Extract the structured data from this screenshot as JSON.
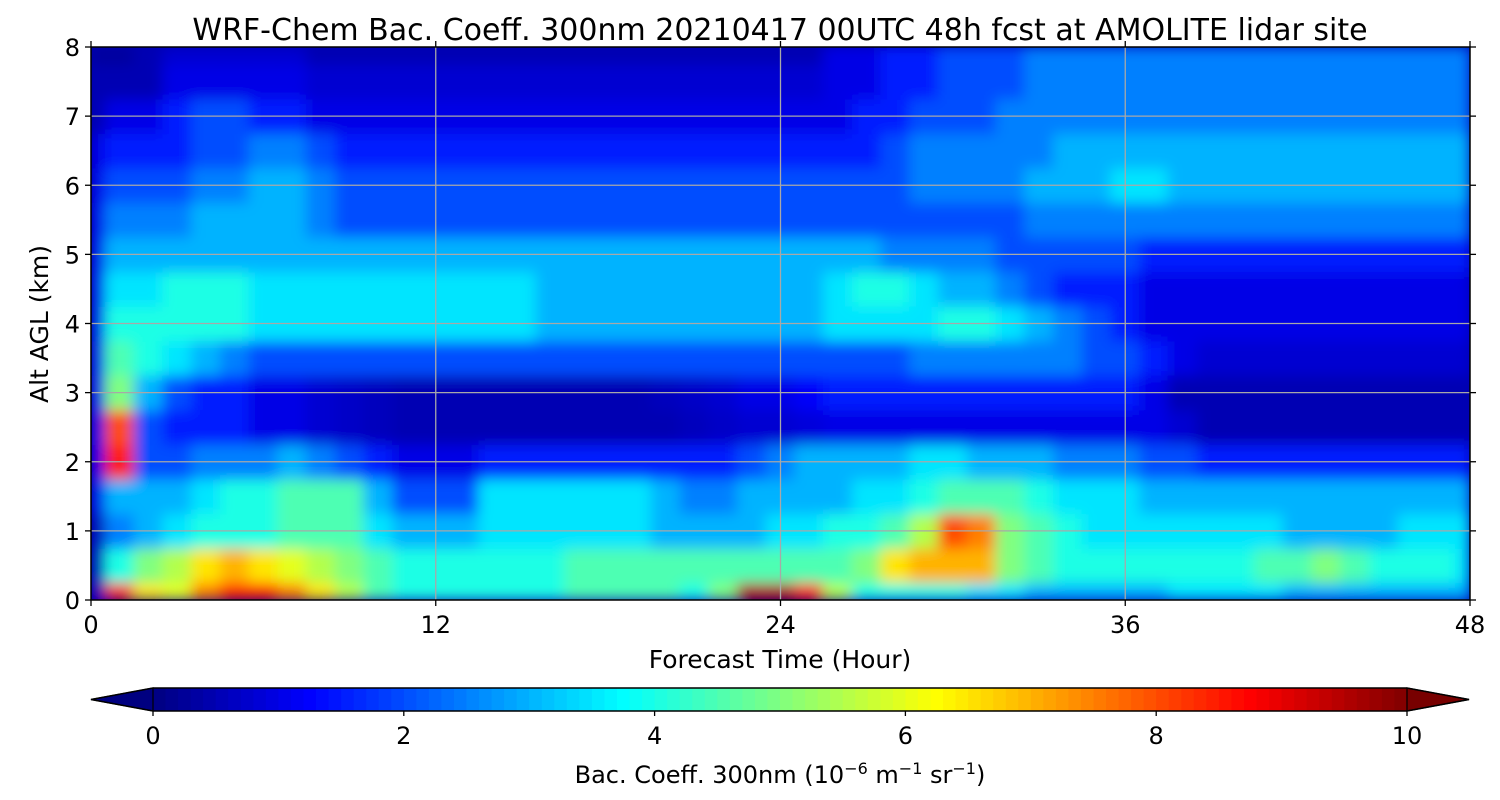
{
  "chart_data": {
    "type": "heatmap",
    "title": "WRF-Chem Bac. Coeff. 300nm  20210417 00UTC 48h fcst at AMOLITE lidar site",
    "xlabel": "Forecast Time (Hour)",
    "ylabel": "Alt AGL (km)",
    "xlim": [
      0,
      48
    ],
    "ylim": [
      0,
      8
    ],
    "xticks": [
      0,
      12,
      24,
      36,
      48
    ],
    "yticks": [
      0,
      1,
      2,
      3,
      4,
      5,
      6,
      7,
      8
    ],
    "grid": true,
    "colormap": "jet",
    "colorbar": {
      "label_prefix": "Bac. Coeff. 300nm  (10",
      "label_exp1": "−6",
      "label_mid": " m",
      "label_exp2": "−1",
      "label_mid2": " sr",
      "label_exp3": "−1",
      "label_suffix": ")",
      "min": 0,
      "max": 10,
      "ticks": [
        0,
        2,
        4,
        6,
        8,
        10
      ],
      "extend": "both"
    },
    "x": [
      0,
      1,
      2,
      3,
      4,
      5,
      6,
      7,
      8,
      9,
      10,
      11,
      12,
      13,
      14,
      15,
      16,
      17,
      18,
      19,
      20,
      21,
      22,
      23,
      24,
      25,
      26,
      27,
      28,
      29,
      30,
      31,
      32,
      33,
      34,
      35,
      36,
      37,
      38,
      39,
      40,
      41,
      42,
      43,
      44,
      45,
      46,
      47,
      48
    ],
    "y": [
      0,
      0.5,
      1,
      1.5,
      2,
      2.5,
      3,
      3.5,
      4,
      4.5,
      5,
      5.5,
      6,
      6.5,
      7,
      7.5,
      8
    ],
    "z": [
      [
        0.5,
        8.5,
        6.5,
        6.0,
        7.5,
        8.5,
        8.5,
        7.5,
        6.5,
        5.5,
        4.5,
        4.0,
        4.0,
        4.0,
        4.0,
        4.0,
        4.0,
        4.5,
        4.5,
        4.5,
        4.5,
        4.0,
        5.0,
        9.5,
        9.5,
        8.5,
        5.5,
        4.0,
        4.0,
        4.0,
        4.0,
        3.5,
        3.5,
        3.0,
        3.0,
        3.0,
        3.0,
        3.0,
        3.5,
        3.5,
        3.5,
        3.5,
        3.0,
        3.0,
        3.0,
        3.0,
        3.0,
        3.0,
        3.0
      ],
      [
        0.5,
        4.0,
        5.0,
        5.5,
        6.5,
        7.0,
        6.5,
        6.0,
        5.5,
        5.0,
        4.5,
        4.0,
        4.0,
        4.0,
        4.0,
        4.0,
        4.0,
        4.5,
        4.5,
        4.5,
        4.5,
        4.5,
        4.5,
        4.5,
        4.5,
        4.5,
        4.5,
        5.0,
        6.5,
        7.0,
        7.0,
        7.0,
        5.0,
        4.5,
        4.0,
        4.0,
        4.0,
        4.0,
        4.0,
        4.0,
        4.0,
        4.5,
        4.5,
        5.0,
        4.5,
        4.0,
        4.0,
        4.0,
        3.5
      ],
      [
        0.5,
        2.5,
        3.0,
        3.5,
        4.0,
        4.0,
        4.0,
        4.5,
        4.5,
        4.5,
        3.5,
        3.0,
        3.0,
        3.0,
        3.5,
        3.5,
        3.5,
        3.5,
        3.5,
        3.5,
        3.0,
        3.0,
        3.0,
        3.0,
        3.5,
        3.5,
        4.0,
        4.0,
        4.5,
        5.5,
        8.0,
        7.5,
        5.0,
        4.5,
        4.0,
        3.5,
        3.5,
        3.5,
        3.5,
        3.5,
        3.5,
        3.5,
        3.0,
        3.0,
        3.0,
        3.0,
        3.5,
        3.5,
        3.5
      ],
      [
        1.0,
        3.0,
        3.0,
        3.0,
        3.5,
        4.0,
        4.0,
        4.5,
        4.5,
        4.5,
        3.0,
        2.0,
        2.0,
        2.0,
        3.5,
        3.5,
        3.5,
        3.5,
        3.5,
        3.5,
        3.0,
        2.5,
        2.5,
        3.0,
        3.0,
        3.0,
        3.0,
        3.5,
        3.5,
        4.0,
        4.5,
        4.5,
        4.5,
        4.0,
        3.5,
        3.5,
        3.5,
        3.0,
        3.0,
        3.0,
        3.0,
        3.0,
        3.0,
        3.0,
        3.0,
        3.0,
        3.0,
        3.0,
        3.0
      ],
      [
        1.0,
        8.5,
        2.0,
        2.0,
        2.5,
        2.5,
        2.5,
        3.0,
        2.5,
        2.0,
        1.5,
        1.0,
        1.0,
        1.0,
        1.5,
        1.5,
        1.5,
        1.5,
        1.5,
        1.5,
        1.5,
        1.5,
        1.5,
        2.0,
        2.5,
        3.0,
        3.0,
        3.0,
        3.0,
        3.5,
        3.5,
        3.0,
        3.0,
        3.0,
        2.5,
        2.5,
        2.5,
        2.0,
        2.0,
        1.5,
        1.5,
        1.5,
        1.5,
        1.5,
        1.5,
        1.5,
        1.5,
        1.5,
        1.5
      ],
      [
        1.0,
        8.0,
        2.0,
        1.5,
        1.5,
        1.5,
        1.0,
        1.0,
        0.8,
        0.7,
        0.6,
        0.5,
        0.5,
        0.5,
        0.5,
        0.5,
        0.5,
        0.5,
        0.5,
        0.5,
        0.5,
        0.6,
        0.7,
        0.8,
        0.8,
        0.9,
        1.0,
        1.0,
        1.0,
        1.0,
        1.0,
        1.0,
        1.0,
        1.0,
        1.0,
        1.0,
        1.0,
        1.0,
        0.8,
        0.5,
        0.5,
        0.5,
        0.5,
        0.5,
        0.5,
        0.5,
        0.5,
        0.5,
        0.5
      ],
      [
        1.0,
        5.0,
        3.0,
        2.0,
        1.5,
        1.5,
        1.0,
        1.0,
        0.8,
        0.7,
        0.6,
        0.5,
        0.5,
        0.5,
        0.5,
        0.5,
        0.5,
        0.5,
        0.5,
        0.5,
        0.6,
        0.7,
        0.8,
        1.0,
        1.0,
        1.2,
        1.5,
        1.5,
        1.5,
        1.5,
        1.5,
        1.5,
        1.5,
        1.5,
        1.5,
        1.5,
        1.5,
        1.0,
        0.5,
        0.5,
        0.5,
        0.5,
        0.5,
        0.5,
        0.5,
        0.5,
        0.5,
        0.5,
        0.5
      ],
      [
        1.0,
        4.5,
        4.0,
        3.5,
        3.0,
        2.5,
        2.0,
        2.0,
        2.0,
        2.0,
        2.0,
        2.0,
        2.0,
        2.0,
        2.0,
        2.0,
        2.0,
        2.0,
        2.0,
        2.0,
        2.0,
        2.0,
        2.0,
        2.0,
        2.0,
        2.0,
        2.0,
        2.0,
        2.0,
        2.5,
        2.5,
        2.5,
        2.5,
        2.5,
        2.5,
        2.0,
        2.0,
        1.5,
        1.0,
        0.8,
        0.8,
        0.8,
        0.8,
        0.8,
        0.8,
        0.8,
        0.8,
        0.8,
        0.8
      ],
      [
        1.0,
        4.0,
        4.0,
        4.0,
        4.0,
        4.0,
        3.5,
        3.5,
        3.5,
        3.5,
        3.5,
        3.5,
        3.5,
        3.5,
        3.5,
        3.5,
        3.0,
        3.0,
        3.0,
        3.0,
        3.0,
        3.0,
        3.0,
        3.0,
        3.0,
        3.0,
        3.5,
        3.5,
        3.5,
        3.5,
        4.0,
        4.0,
        3.5,
        3.0,
        2.5,
        2.0,
        1.5,
        1.0,
        1.0,
        1.0,
        1.0,
        1.0,
        1.0,
        1.0,
        1.0,
        1.0,
        1.0,
        1.0,
        1.0
      ],
      [
        1.0,
        3.5,
        3.5,
        4.0,
        4.0,
        4.0,
        3.5,
        3.5,
        3.5,
        3.5,
        3.5,
        3.5,
        3.5,
        3.5,
        3.5,
        3.5,
        3.0,
        3.0,
        3.0,
        3.0,
        3.0,
        3.0,
        3.0,
        3.0,
        3.0,
        3.0,
        3.5,
        4.0,
        4.0,
        3.5,
        3.0,
        3.0,
        2.5,
        2.0,
        1.5,
        1.5,
        1.5,
        1.0,
        1.0,
        1.0,
        1.0,
        1.0,
        1.0,
        1.0,
        1.0,
        1.0,
        1.0,
        1.0,
        1.0
      ],
      [
        1.0,
        3.0,
        3.0,
        3.0,
        3.0,
        3.0,
        3.0,
        3.0,
        3.0,
        3.0,
        3.0,
        3.0,
        3.0,
        3.0,
        3.0,
        3.0,
        3.0,
        3.0,
        3.0,
        3.0,
        3.0,
        3.0,
        3.0,
        3.0,
        3.0,
        3.0,
        3.0,
        3.0,
        2.5,
        2.5,
        2.5,
        2.5,
        2.0,
        2.0,
        2.0,
        2.0,
        2.0,
        1.5,
        1.5,
        1.5,
        1.5,
        1.5,
        1.5,
        1.5,
        1.5,
        1.5,
        1.5,
        1.5,
        1.5
      ],
      [
        1.0,
        2.5,
        2.5,
        2.5,
        3.0,
        3.0,
        3.0,
        3.0,
        2.5,
        2.0,
        2.0,
        2.0,
        2.0,
        2.0,
        2.0,
        2.0,
        2.0,
        2.0,
        2.0,
        2.0,
        2.0,
        2.0,
        2.0,
        2.0,
        2.0,
        2.0,
        2.0,
        2.0,
        2.0,
        2.0,
        2.0,
        2.0,
        2.0,
        2.5,
        2.5,
        2.5,
        2.5,
        2.5,
        2.5,
        2.5,
        2.5,
        2.5,
        2.5,
        2.5,
        2.5,
        2.5,
        2.5,
        2.5,
        2.5
      ],
      [
        1.0,
        2.0,
        2.0,
        2.0,
        2.5,
        2.5,
        3.0,
        3.0,
        2.5,
        2.0,
        2.0,
        2.0,
        2.0,
        2.0,
        2.0,
        2.0,
        2.0,
        2.0,
        2.0,
        2.0,
        2.0,
        2.0,
        2.0,
        2.0,
        2.0,
        2.0,
        2.0,
        2.0,
        2.0,
        2.5,
        2.5,
        2.5,
        2.5,
        3.0,
        3.0,
        3.0,
        3.5,
        3.5,
        3.0,
        3.0,
        3.0,
        3.0,
        3.0,
        3.0,
        3.0,
        3.0,
        3.0,
        3.0,
        3.0
      ],
      [
        1.0,
        1.5,
        1.5,
        1.5,
        2.0,
        2.0,
        2.5,
        2.5,
        2.0,
        1.5,
        1.5,
        1.5,
        1.5,
        1.5,
        1.5,
        1.5,
        1.5,
        1.5,
        1.5,
        1.5,
        1.5,
        1.5,
        1.5,
        1.5,
        1.5,
        1.5,
        1.5,
        1.5,
        2.0,
        2.5,
        2.5,
        2.5,
        2.5,
        2.5,
        3.0,
        3.0,
        3.0,
        3.0,
        3.0,
        3.0,
        3.0,
        3.0,
        3.0,
        3.0,
        3.0,
        3.0,
        3.0,
        3.0,
        3.0
      ],
      [
        0.5,
        1.0,
        1.0,
        1.5,
        2.0,
        2.0,
        1.5,
        1.5,
        1.0,
        1.0,
        1.0,
        1.0,
        1.0,
        1.0,
        1.0,
        1.0,
        1.0,
        1.0,
        1.0,
        1.0,
        1.0,
        1.0,
        1.0,
        1.0,
        1.0,
        1.0,
        1.0,
        1.5,
        1.5,
        2.0,
        2.0,
        2.0,
        2.5,
        2.5,
        2.5,
        2.5,
        2.5,
        2.5,
        2.5,
        2.5,
        2.5,
        2.5,
        2.5,
        2.5,
        2.5,
        2.5,
        2.5,
        2.5,
        2.5
      ],
      [
        0.5,
        0.5,
        0.5,
        1.0,
        1.0,
        1.0,
        1.0,
        1.0,
        0.8,
        0.8,
        0.8,
        0.8,
        0.8,
        0.8,
        0.8,
        0.8,
        0.8,
        0.8,
        0.8,
        0.8,
        0.8,
        0.8,
        0.8,
        0.8,
        0.8,
        0.8,
        1.0,
        1.0,
        1.5,
        1.5,
        2.0,
        2.0,
        2.0,
        2.5,
        2.5,
        2.5,
        2.5,
        2.5,
        2.5,
        2.5,
        2.5,
        2.5,
        2.5,
        2.5,
        2.5,
        2.5,
        2.5,
        2.5,
        2.5
      ],
      [
        0.3,
        0.3,
        0.5,
        0.8,
        0.8,
        0.8,
        0.8,
        0.8,
        0.5,
        0.5,
        0.5,
        0.5,
        0.5,
        0.5,
        0.5,
        0.5,
        0.5,
        0.5,
        0.5,
        0.5,
        0.5,
        0.5,
        0.5,
        0.5,
        0.5,
        0.5,
        1.0,
        1.0,
        1.5,
        1.5,
        2.0,
        2.0,
        2.0,
        2.5,
        2.5,
        2.5,
        2.5,
        2.5,
        2.5,
        2.5,
        2.5,
        2.5,
        2.5,
        2.5,
        2.5,
        2.5,
        2.5,
        2.5,
        2.5
      ]
    ]
  }
}
